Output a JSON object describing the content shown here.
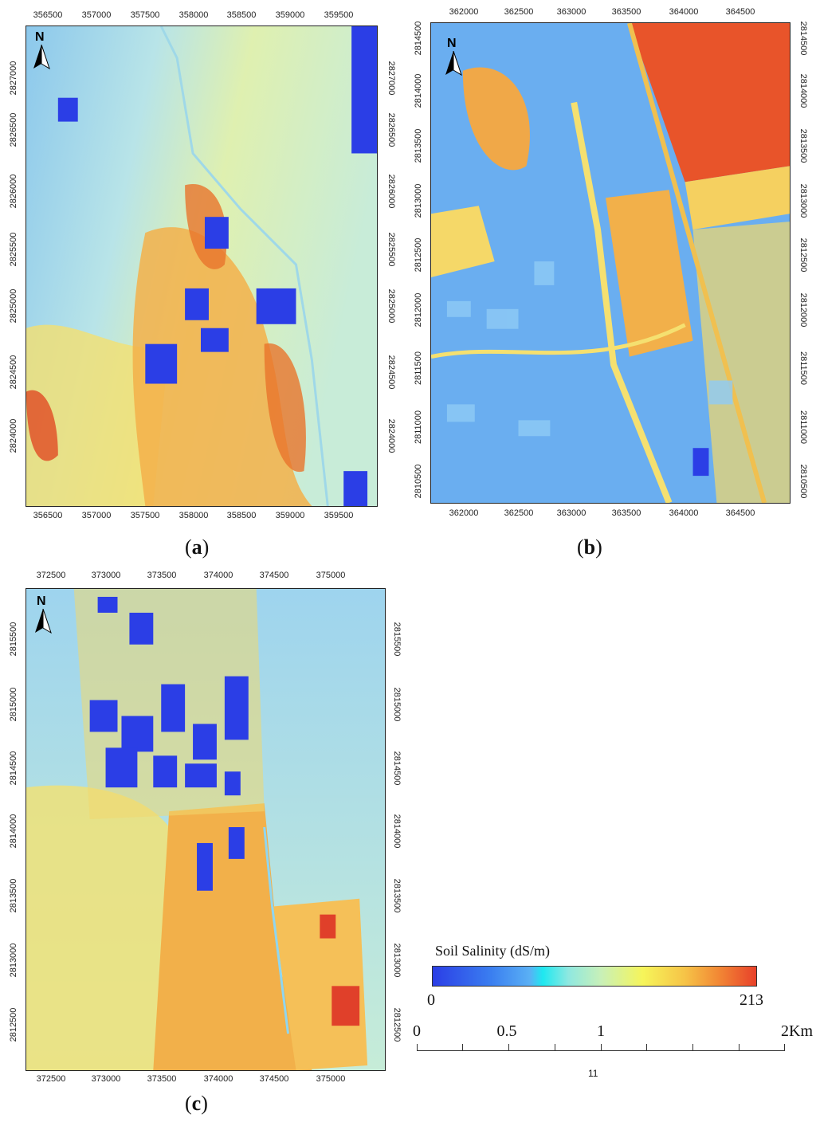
{
  "panels": {
    "a": {
      "caption": "(a)",
      "caption_letter": "a",
      "north": "N",
      "x_ticks": [
        "356500",
        "357000",
        "357500",
        "358000",
        "358500",
        "359000",
        "359500"
      ],
      "y_ticks": [
        "2827000",
        "2826500",
        "2826000",
        "2825500",
        "2825000",
        "2824500",
        "2824000"
      ]
    },
    "b": {
      "caption": "(b)",
      "caption_letter": "b",
      "north": "N",
      "x_ticks": [
        "362000",
        "362500",
        "363000",
        "363500",
        "364000",
        "364500"
      ],
      "y_ticks": [
        "2814500",
        "2814000",
        "2813500",
        "2813000",
        "2812500",
        "2812000",
        "2811500",
        "2811000",
        "2810500"
      ]
    },
    "c": {
      "caption": "(c)",
      "caption_letter": "c",
      "north": "N",
      "x_ticks": [
        "372500",
        "373000",
        "373500",
        "374000",
        "374500",
        "375000"
      ],
      "y_ticks": [
        "2815500",
        "2815000",
        "2814500",
        "2814000",
        "2813500",
        "2813000",
        "2812500"
      ]
    }
  },
  "legend": {
    "title": "Soil Salinity (dS/m)",
    "min": "0",
    "max": "213",
    "colors": [
      "#2b3ee6",
      "#5ab0f5",
      "#1ee8f0",
      "#c8f0b8",
      "#f6f55a",
      "#f28a35",
      "#e8412a"
    ]
  },
  "scale_bar": {
    "labels": [
      "0",
      "0.5",
      "1",
      "2Km"
    ]
  },
  "page_number": "11",
  "icons": {
    "north_arrow": "north-arrow-icon"
  }
}
